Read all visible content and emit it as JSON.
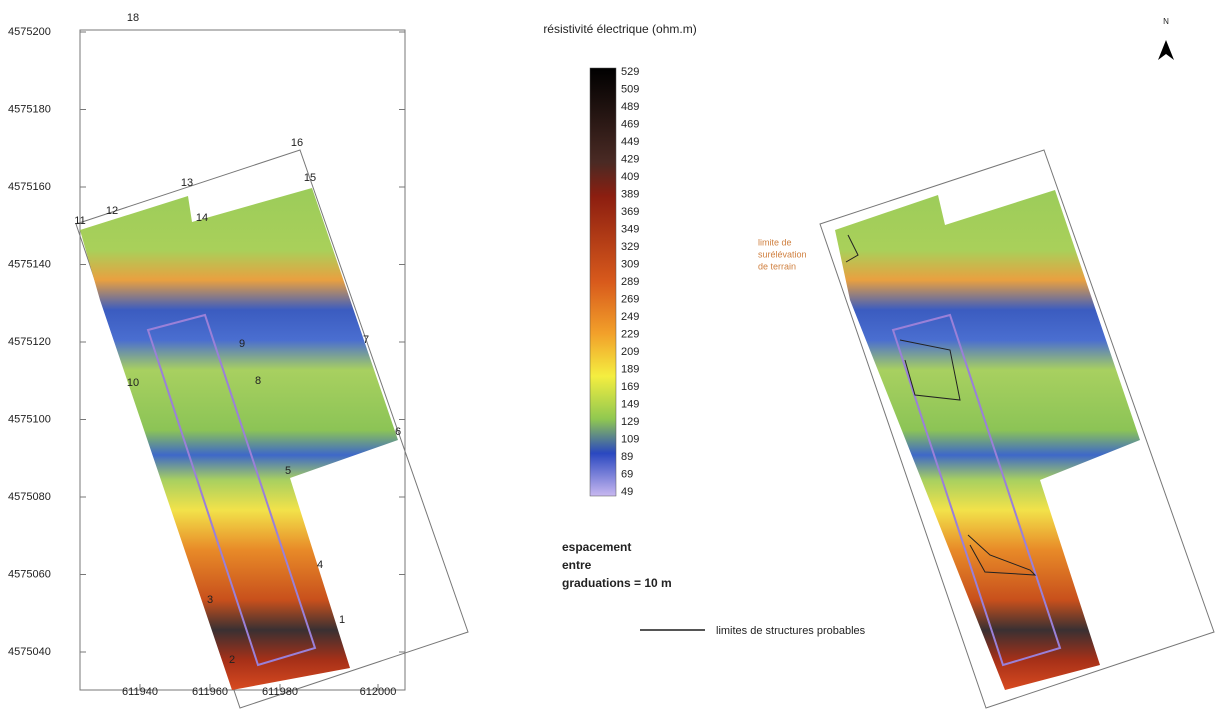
{
  "title": "résistivité électrique (ohm.m)",
  "north": "N",
  "colorbar": {
    "labels": [
      529,
      509,
      489,
      469,
      449,
      429,
      409,
      389,
      369,
      349,
      329,
      309,
      289,
      269,
      249,
      229,
      209,
      189,
      169,
      149,
      129,
      109,
      89,
      69,
      49
    ]
  },
  "left_map": {
    "y_labels": [
      4575200,
      4575180,
      4575160,
      4575140,
      4575120,
      4575100,
      4575080,
      4575060,
      4575040
    ],
    "x_labels": [
      611940,
      611960,
      611980,
      612000
    ],
    "points": [
      "18",
      "16",
      "15",
      "13",
      "14",
      "12",
      "11",
      "9",
      "8",
      "10",
      "7",
      "6",
      "5",
      "4",
      "3",
      "1",
      "2"
    ]
  },
  "right_map": {
    "annotation": [
      "limite de",
      "surélévation",
      "de terrain"
    ]
  },
  "scale_note": [
    "espacement",
    "entre",
    "graduations = 10 m"
  ],
  "legend": {
    "label": "limites de structures probables"
  }
}
